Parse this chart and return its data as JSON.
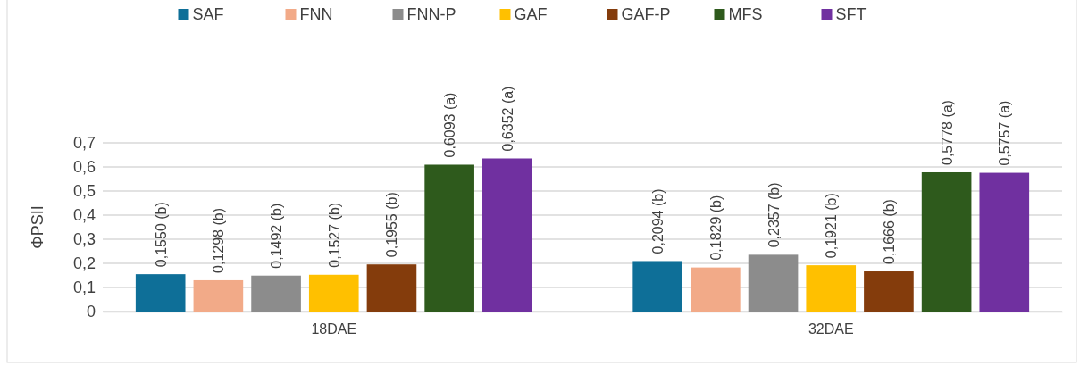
{
  "chart_data": {
    "type": "bar",
    "ylabel": "ΦPSII",
    "categories": [
      "18DAE",
      "32DAE"
    ],
    "ylim": [
      0,
      0.7
    ],
    "yticks": [
      0,
      {
        "value": 0.1,
        "label": "0,1"
      },
      {
        "value": 0.2,
        "label": "0,2"
      },
      {
        "value": 0.3,
        "label": "0,3"
      },
      {
        "value": 0.4,
        "label": "0,4"
      },
      {
        "value": 0.5,
        "label": "0,5"
      },
      {
        "value": 0.6,
        "label": "0,6"
      },
      {
        "value": 0.7,
        "label": "0,7"
      }
    ],
    "grid": "y",
    "legend": "top",
    "series": [
      {
        "name": "SAF",
        "color": "#0e6f98",
        "values": [
          0.155,
          0.2094
        ],
        "value_labels": [
          "0,1550 (b)",
          "0,2094 (b)"
        ]
      },
      {
        "name": "FNN",
        "color": "#f2aa88",
        "values": [
          0.1298,
          0.1829
        ],
        "value_labels": [
          "0,1298 (b)",
          "0,1829 (b)"
        ]
      },
      {
        "name": "FNN-P",
        "color": "#8c8c8c",
        "values": [
          0.1492,
          0.2357
        ],
        "value_labels": [
          "0,1492 (b)",
          "0,2357 (b)"
        ]
      },
      {
        "name": "GAF",
        "color": "#ffc000",
        "values": [
          0.1527,
          0.1921
        ],
        "value_labels": [
          "0,1527 (b)",
          "0,1921 (b)"
        ]
      },
      {
        "name": "GAF-P",
        "color": "#843c0c",
        "values": [
          0.1955,
          0.1666
        ],
        "value_labels": [
          "0,1955 (b)",
          "0,1666 (b)"
        ]
      },
      {
        "name": "MFS",
        "color": "#2e5a1c",
        "values": [
          0.6093,
          0.5778
        ],
        "value_labels": [
          "0,6093 (a)",
          "0,5778 (a)"
        ]
      },
      {
        "name": "SFT",
        "color": "#7030a0",
        "values": [
          0.6352,
          0.5757
        ],
        "value_labels": [
          "0,6352 (a)",
          "0,5757 (a)"
        ]
      }
    ]
  }
}
